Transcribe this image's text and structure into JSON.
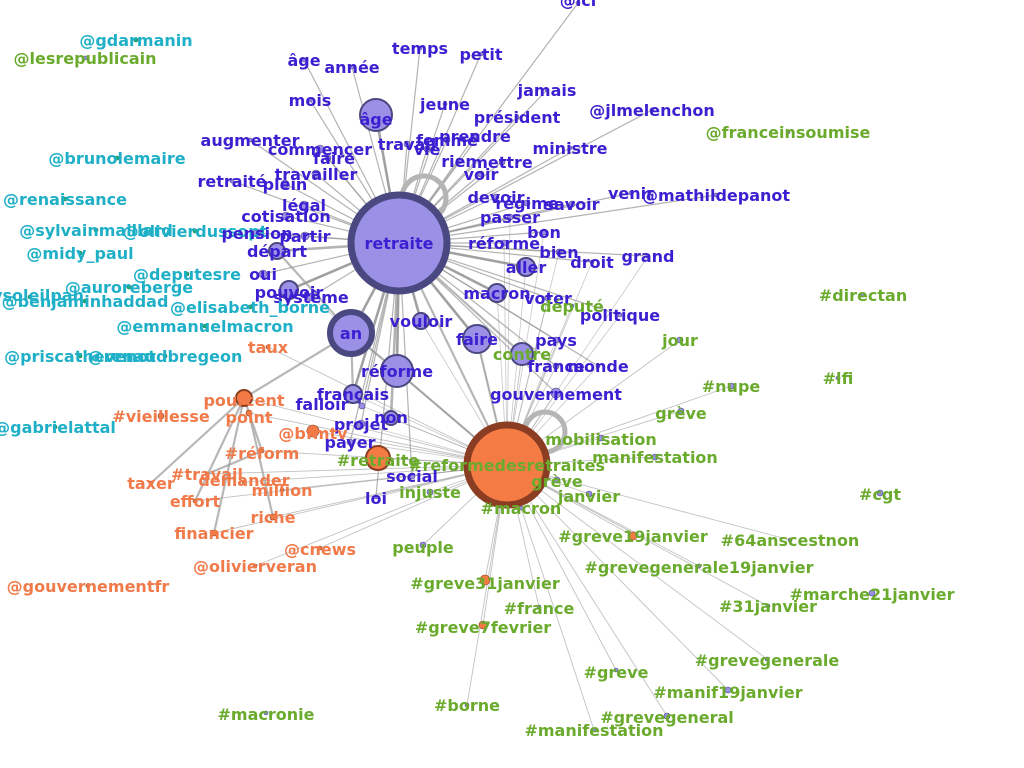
{
  "colors": {
    "word": "#3b1fd1",
    "hashtag": "#6aab2d",
    "mention": "#1fb0c8",
    "orange": "#f07a4a",
    "word_node_fill": "#9a90e6",
    "word_node_stroke": "#4a4880",
    "orange_node_fill": "#f47c44",
    "orange_node_stroke": "#8a3d22",
    "edge": "#999999"
  },
  "hubs": [
    {
      "id": "retraite",
      "label": "retraite",
      "color": "word"
    },
    {
      "id": "reformedesretraites",
      "label": "",
      "color": "orange"
    }
  ],
  "nodes": [
    {
      "id": "lci",
      "label": "@lci",
      "group": "word"
    },
    {
      "id": "gdarmanin",
      "label": "@gdarmanin",
      "group": "mention"
    },
    {
      "id": "lesrepublicain",
      "label": "@lesrepublicain",
      "group": "hashtag"
    },
    {
      "id": "age",
      "label": "âge",
      "group": "word"
    },
    {
      "id": "annee",
      "label": "année",
      "group": "word"
    },
    {
      "id": "temps",
      "label": "temps",
      "group": "word"
    },
    {
      "id": "petit",
      "label": "petit",
      "group": "word"
    },
    {
      "id": "jamais",
      "label": "jamais",
      "group": "word"
    },
    {
      "id": "mois",
      "label": "mois",
      "group": "word"
    },
    {
      "id": "age2",
      "label": "âge",
      "group": "word"
    },
    {
      "id": "jeune",
      "label": "jeune",
      "group": "word"
    },
    {
      "id": "president",
      "label": "président",
      "group": "word"
    },
    {
      "id": "jlmelenchon",
      "label": "@jlmelenchon",
      "group": "word"
    },
    {
      "id": "franceinsoumise",
      "label": "@franceinsoumise",
      "group": "hashtag"
    },
    {
      "id": "brunolemaire",
      "label": "@brunolemaire",
      "group": "mention"
    },
    {
      "id": "augmenter",
      "label": "augmenter",
      "group": "word"
    },
    {
      "id": "commencer",
      "label": "commencer",
      "group": "word"
    },
    {
      "id": "travail",
      "label": "travail",
      "group": "word"
    },
    {
      "id": "femme",
      "label": "femme",
      "group": "word"
    },
    {
      "id": "prendre",
      "label": "prendre",
      "group": "word"
    },
    {
      "id": "ministre",
      "label": "ministre",
      "group": "word"
    },
    {
      "id": "faire2",
      "label": "faire",
      "group": "word"
    },
    {
      "id": "vie",
      "label": "vie",
      "group": "word"
    },
    {
      "id": "rien",
      "label": "rien",
      "group": "word"
    },
    {
      "id": "mettre",
      "label": "mettre",
      "group": "word"
    },
    {
      "id": "travailler",
      "label": "travailler",
      "group": "word"
    },
    {
      "id": "voir",
      "label": "voir",
      "group": "word"
    },
    {
      "id": "retraite2",
      "label": "retraité",
      "group": "word"
    },
    {
      "id": "plein",
      "label": "plein",
      "group": "word"
    },
    {
      "id": "renaissance",
      "label": "@renaissance",
      "group": "mention"
    },
    {
      "id": "legal",
      "label": "légal",
      "group": "word"
    },
    {
      "id": "devoir",
      "label": "devoir",
      "group": "word"
    },
    {
      "id": "regime",
      "label": "régime",
      "group": "word"
    },
    {
      "id": "savoir",
      "label": "savoir",
      "group": "word"
    },
    {
      "id": "venir",
      "label": "venir",
      "group": "word"
    },
    {
      "id": "mathildepanot",
      "label": "@mathildepanot",
      "group": "word"
    },
    {
      "id": "cotisation",
      "label": "cotisation",
      "group": "word"
    },
    {
      "id": "passer",
      "label": "passer",
      "group": "word"
    },
    {
      "id": "sylvainmaillard",
      "label": "@sylvainmaillard",
      "group": "mention"
    },
    {
      "id": "olivierdussopt",
      "label": "@olivierdussopt",
      "group": "mention"
    },
    {
      "id": "pension",
      "label": "pension",
      "group": "word"
    },
    {
      "id": "partir",
      "label": "partir",
      "group": "word"
    },
    {
      "id": "bon",
      "label": "bon",
      "group": "word"
    },
    {
      "id": "reforme2",
      "label": "réforme",
      "group": "word"
    },
    {
      "id": "depart",
      "label": "départ",
      "group": "word"
    },
    {
      "id": "midy_paul",
      "label": "@midy_paul",
      "group": "mention"
    },
    {
      "id": "bien",
      "label": "bien",
      "group": "word"
    },
    {
      "id": "droit",
      "label": "droit",
      "group": "word"
    },
    {
      "id": "grand",
      "label": "grand",
      "group": "word"
    },
    {
      "id": "aller",
      "label": "aller",
      "group": "word"
    },
    {
      "id": "deputesre",
      "label": "@deputesre",
      "group": "mention"
    },
    {
      "id": "oui",
      "label": "oui",
      "group": "word"
    },
    {
      "id": "auroreberge",
      "label": "@auroreberge",
      "group": "mention"
    },
    {
      "id": "pouvoir",
      "label": "pouvoir",
      "group": "word"
    },
    {
      "id": "macron",
      "label": "macron",
      "group": "word"
    },
    {
      "id": "voter",
      "label": "voter",
      "group": "word"
    },
    {
      "id": "directan",
      "label": "#directan",
      "group": "hashtag"
    },
    {
      "id": "benjaminhaddad",
      "label": "@benjaminhaddad",
      "group": "mention"
    },
    {
      "id": "bsoleilpan",
      "label": "@ysoleilpan",
      "group": "mention"
    },
    {
      "id": "systeme",
      "label": "système",
      "group": "word"
    },
    {
      "id": "depute",
      "label": "député",
      "group": "hashtag"
    },
    {
      "id": "elisabeth_borne",
      "label": "@elisabeth_borne",
      "group": "mention"
    },
    {
      "id": "politique",
      "label": "politique",
      "group": "word"
    },
    {
      "id": "vouloir",
      "label": "vouloir",
      "group": "word"
    },
    {
      "id": "an",
      "label": "an",
      "group": "word"
    },
    {
      "id": "emmanuelmacron",
      "label": "@emmanuelmacron",
      "group": "mention"
    },
    {
      "id": "faire",
      "label": "faire",
      "group": "word"
    },
    {
      "id": "jour",
      "label": "jour",
      "group": "hashtag"
    },
    {
      "id": "pays",
      "label": "pays",
      "group": "word"
    },
    {
      "id": "taux",
      "label": "taux",
      "group": "orange"
    },
    {
      "id": "contre",
      "label": "contre",
      "group": "hashtag"
    },
    {
      "id": "priscathevenot",
      "label": "@priscathevenot",
      "group": "mention"
    },
    {
      "id": "renaudbregeon",
      "label": "@renaudbregeon",
      "group": "mention"
    },
    {
      "id": "monde",
      "label": "monde",
      "group": "word"
    },
    {
      "id": "france",
      "label": "france",
      "group": "word"
    },
    {
      "id": "reforme",
      "label": "réforme",
      "group": "word"
    },
    {
      "id": "lfi",
      "label": "#lfi",
      "group": "hashtag"
    },
    {
      "id": "nupe",
      "label": "#nupe",
      "group": "hashtag"
    },
    {
      "id": "francais",
      "label": "français",
      "group": "word"
    },
    {
      "id": "pourcent",
      "label": "pourcent",
      "group": "orange"
    },
    {
      "id": "gouvernement",
      "label": "gouvernement",
      "group": "word"
    },
    {
      "id": "falloir",
      "label": "falloir",
      "group": "word"
    },
    {
      "id": "point",
      "label": "point",
      "group": "orange"
    },
    {
      "id": "vieillesse",
      "label": "#vieillesse",
      "group": "orange"
    },
    {
      "id": "greve",
      "label": "grève",
      "group": "hashtag"
    },
    {
      "id": "non",
      "label": "non",
      "group": "word"
    },
    {
      "id": "gabrielattal",
      "label": "@gabrielattal",
      "group": "mention"
    },
    {
      "id": "projet",
      "label": "projet",
      "group": "word"
    },
    {
      "id": "bfmtv",
      "label": "@bfmtv",
      "group": "orange"
    },
    {
      "id": "mobilisation",
      "label": "mobilisation",
      "group": "hashtag"
    },
    {
      "id": "payer",
      "label": "payer",
      "group": "word"
    },
    {
      "id": "manifestation",
      "label": "manifestation",
      "group": "hashtag"
    },
    {
      "id": "reform",
      "label": "#réform",
      "group": "orange"
    },
    {
      "id": "retraite3",
      "label": "#retraite",
      "group": "hashtag"
    },
    {
      "id": "reformedesretraites",
      "label": "#reformedesretraites",
      "group": "hashtag"
    },
    {
      "id": "travail2",
      "label": "#travail",
      "group": "orange"
    },
    {
      "id": "social",
      "label": "social",
      "group": "word"
    },
    {
      "id": "demander",
      "label": "demander",
      "group": "orange"
    },
    {
      "id": "taxer",
      "label": "taxer",
      "group": "orange"
    },
    {
      "id": "greve_label",
      "label": "grève",
      "group": "hashtag"
    },
    {
      "id": "janvier",
      "label": "janvier",
      "group": "hashtag"
    },
    {
      "id": "cgt",
      "label": "#cgt",
      "group": "hashtag"
    },
    {
      "id": "injuste",
      "label": "injuste",
      "group": "hashtag"
    },
    {
      "id": "million",
      "label": "million",
      "group": "orange"
    },
    {
      "id": "effort",
      "label": "effort",
      "group": "orange"
    },
    {
      "id": "loi",
      "label": "loi",
      "group": "word"
    },
    {
      "id": "macron2",
      "label": "#macron",
      "group": "hashtag"
    },
    {
      "id": "riche",
      "label": "riche",
      "group": "orange"
    },
    {
      "id": "financier",
      "label": "financier",
      "group": "orange"
    },
    {
      "id": "greve19janvier",
      "label": "#greve19janvier",
      "group": "hashtag"
    },
    {
      "id": "64anscestnon",
      "label": "#64anscestnon",
      "group": "hashtag"
    },
    {
      "id": "cnews",
      "label": "@cnews",
      "group": "orange"
    },
    {
      "id": "peuple",
      "label": "peuple",
      "group": "hashtag"
    },
    {
      "id": "olivierveran",
      "label": "@olivierveran",
      "group": "orange"
    },
    {
      "id": "grevegenerale19janvier",
      "label": "#grevegenerale19janvier",
      "group": "hashtag"
    },
    {
      "id": "gouvernementfr",
      "label": "@gouvernementfr",
      "group": "orange"
    },
    {
      "id": "greve31janvier",
      "label": "#greve31janvier",
      "group": "hashtag"
    },
    {
      "id": "marche21janvier",
      "label": "#marche21janvier",
      "group": "hashtag"
    },
    {
      "id": "france2",
      "label": "#france",
      "group": "hashtag"
    },
    {
      "id": "31janvier",
      "label": "#31janvier",
      "group": "hashtag"
    },
    {
      "id": "greve7fevrier",
      "label": "#greve7fevrier",
      "group": "hashtag"
    },
    {
      "id": "grevegenerale",
      "label": "#grevegenerale",
      "group": "hashtag"
    },
    {
      "id": "greve2",
      "label": "#greve",
      "group": "hashtag"
    },
    {
      "id": "manif19janvier",
      "label": "#manif19janvier",
      "group": "hashtag"
    },
    {
      "id": "macronie",
      "label": "#macronie",
      "group": "hashtag"
    },
    {
      "id": "borne",
      "label": "#borne",
      "group": "hashtag"
    },
    {
      "id": "grevegeneral",
      "label": "#grevegeneral",
      "group": "hashtag"
    },
    {
      "id": "manifestation2",
      "label": "#manifestation",
      "group": "hashtag"
    }
  ]
}
